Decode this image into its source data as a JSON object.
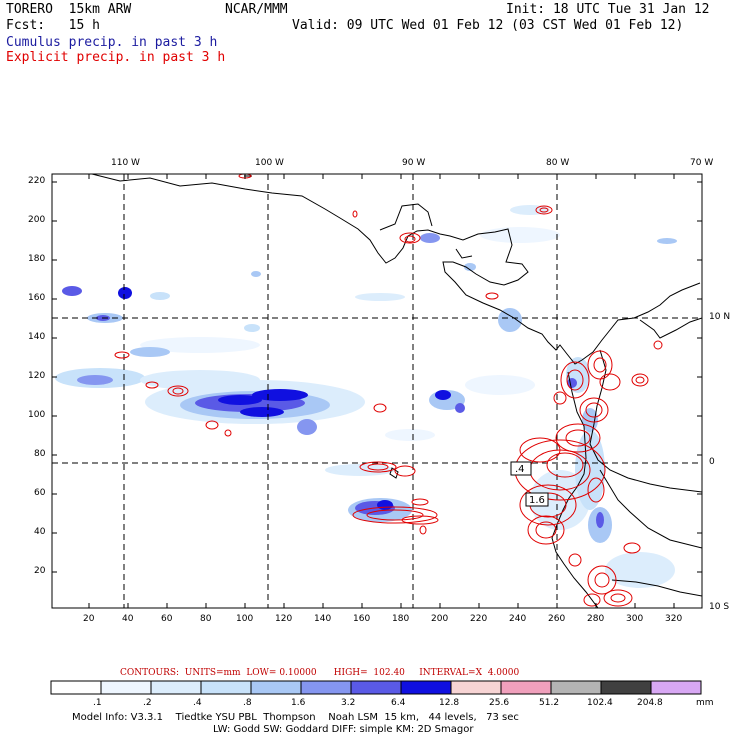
{
  "header": {
    "model": "TORERO  15km ARW",
    "center": "NCAR/MMM",
    "init": "Init: 18 UTC Tue 31 Jan 12",
    "fcst": "Fcst:   15 h",
    "valid": "Valid: 09 UTC Wed 01 Feb 12 (03 CST Wed 01 Feb 12)",
    "cumulus": "Cumulus precip. in past 3 h",
    "explicit": "Explicit precip. in past 3 h"
  },
  "map": {
    "top_labels": [
      "110 W",
      "100 W",
      "90 W",
      "80 W",
      "70 W"
    ],
    "right_labels": [
      "10 N",
      "0",
      "10 S"
    ],
    "y_ticks": [
      "220",
      "200",
      "180",
      "160",
      "140",
      "120",
      "100",
      "80",
      "60",
      "40",
      "20"
    ],
    "x_ticks": [
      "20",
      "40",
      "60",
      "80",
      "100",
      "120",
      "140",
      "160",
      "180",
      "200",
      "220",
      "240",
      "260",
      "280",
      "300",
      "320"
    ],
    "contour_labels": [
      ".4",
      "1.6"
    ]
  },
  "contours_info": "CONTOURS:  UNITS=mm  LOW= 0.10000      HIGH=  102.40     INTERVAL=X  4.0000",
  "legend": {
    "labels": [
      ".1",
      ".2",
      ".4",
      ".8",
      "1.6",
      "3.2",
      "6.4",
      "12.8",
      "25.6",
      "51.2",
      "102.4",
      "204.8"
    ],
    "unit": "mm",
    "colors": [
      "#ffffff",
      "#eef6ff",
      "#dcedfc",
      "#c8e2fa",
      "#a9c8f5",
      "#8596f0",
      "#5a5ae6",
      "#1010e0",
      "#f7d4d4",
      "#f0a0bc",
      "#b4b4b4",
      "#404040",
      "#d8a8f4"
    ]
  },
  "footer": {
    "line1": "Model Info: V3.3.1    Tiedtke YSU PBL  Thompson    Noah LSM  15 km,   44 levels,   73 sec",
    "line2": "LW: Godd SW: Goddard DIFF: simple KM: 2D Smagor"
  }
}
